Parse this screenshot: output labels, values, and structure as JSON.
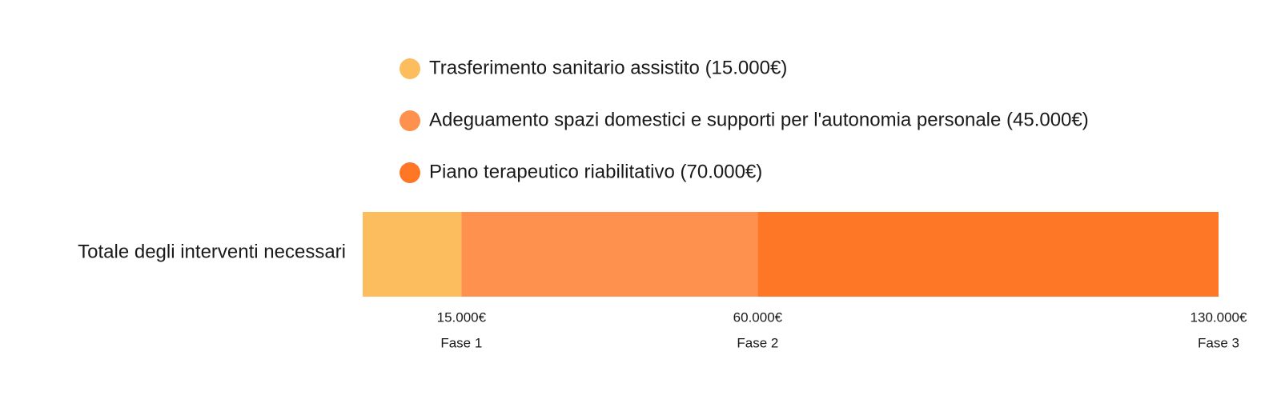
{
  "chart_data": {
    "type": "bar",
    "orientation": "horizontal",
    "stacked": true,
    "categories": [
      "Totale degli interventi necessari"
    ],
    "series": [
      {
        "name": "Trasferimento sanitario assistito (15.000€)",
        "values": [
          15000
        ],
        "color": "#FCBD5E"
      },
      {
        "name": "Adeguamento spazi domestici e supporti per l'autonomia personale (45.000€)",
        "values": [
          45000
        ],
        "color": "#FE914E"
      },
      {
        "name": "Piano terapeutico riabilitativo (70.000€)",
        "values": [
          70000
        ],
        "color": "#FD7726"
      }
    ],
    "xlim": [
      0,
      130000
    ],
    "ticks": [
      {
        "value": 15000,
        "label": "15.000€",
        "phase": "Fase 1"
      },
      {
        "value": 60000,
        "label": "60.000€",
        "phase": "Fase 2"
      },
      {
        "value": 130000,
        "label": "130.000€",
        "phase": "Fase 3"
      }
    ],
    "legend_position": "top",
    "grid": false
  }
}
